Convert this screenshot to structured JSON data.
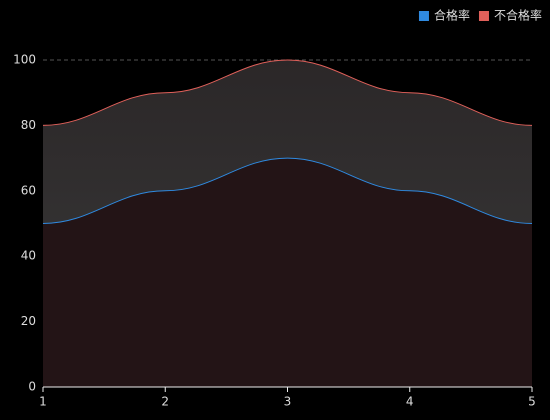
{
  "chart_data": {
    "type": "area",
    "x": [
      1,
      2,
      3,
      4,
      5
    ],
    "series": [
      {
        "name": "合格率",
        "color": "#2f8ae0",
        "values": [
          50,
          60,
          70,
          60,
          50
        ]
      },
      {
        "name": "不合格率",
        "color": "#e0605a",
        "values": [
          80,
          90,
          100,
          90,
          80
        ]
      }
    ],
    "xlim": [
      1,
      5
    ],
    "xticks": [
      1,
      2,
      3,
      4,
      5
    ],
    "ylim": [
      0,
      100
    ],
    "yticks": [
      0,
      20,
      40,
      60,
      80,
      100
    ],
    "grid": true,
    "legend": "top-right"
  }
}
